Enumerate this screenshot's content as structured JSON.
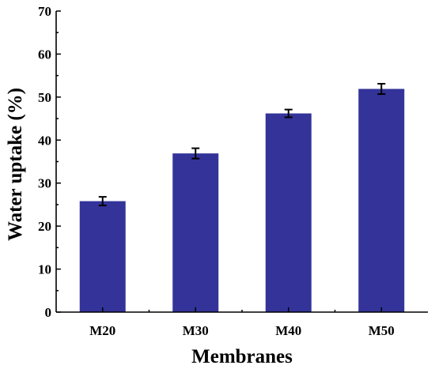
{
  "chart_data": {
    "type": "bar",
    "categories": [
      "M20",
      "M30",
      "M40",
      "M50"
    ],
    "values": [
      25.8,
      36.9,
      46.2,
      51.9
    ],
    "errors": [
      1.0,
      1.2,
      0.9,
      1.2
    ],
    "xlabel": "Membranes",
    "ylabel": "Water uptake (%)",
    "ylim": [
      0,
      70
    ],
    "yticks": [
      0,
      10,
      20,
      30,
      40,
      50,
      60,
      70
    ],
    "grid": false,
    "bar_color": "#333399",
    "error_color": "#000000"
  }
}
